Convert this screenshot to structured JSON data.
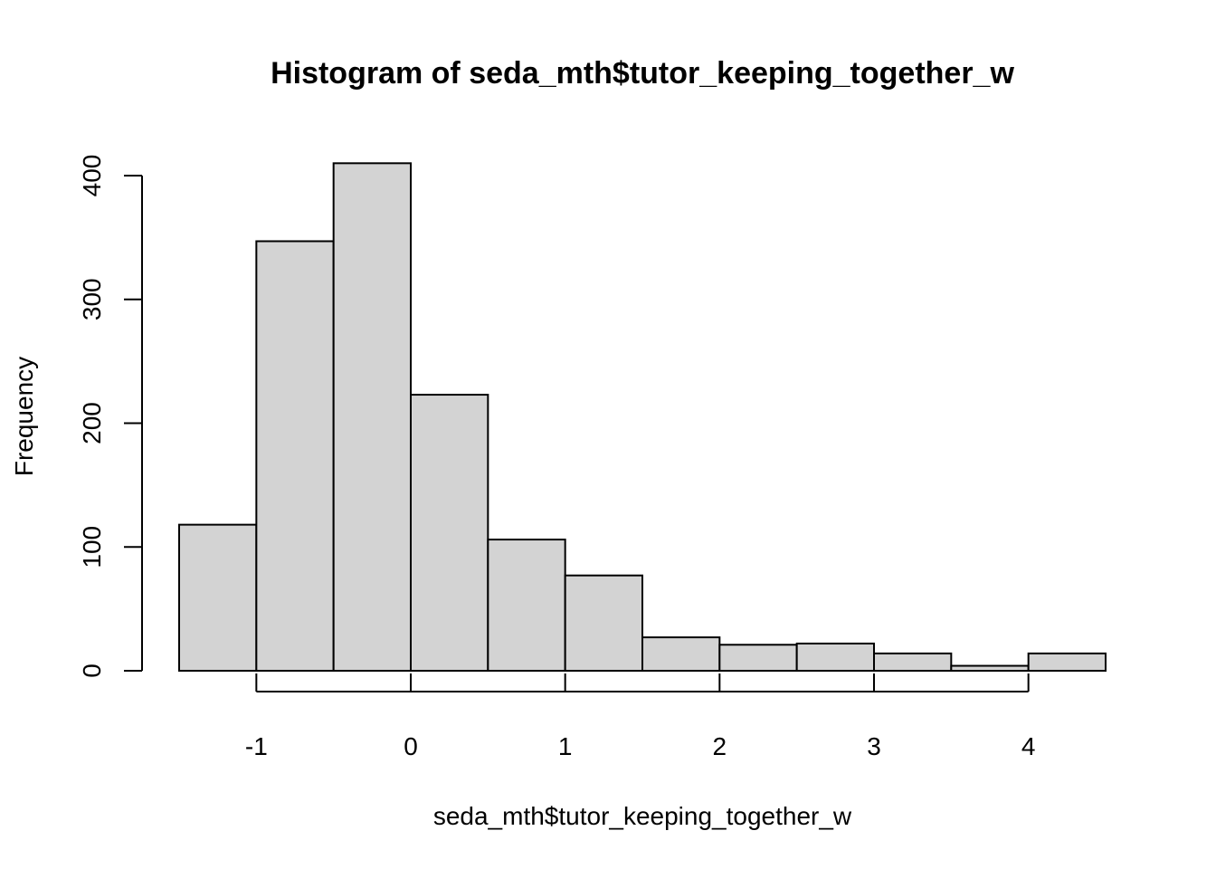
{
  "chart_data": {
    "type": "bar",
    "title": "Histogram of seda_mth$tutor_keeping_together_w",
    "xlabel": "seda_mth$tutor_keeping_together_w",
    "ylabel": "Frequency",
    "bins": [
      {
        "x0": -1.5,
        "x1": -1.0,
        "count": 118
      },
      {
        "x0": -1.0,
        "x1": -0.5,
        "count": 347
      },
      {
        "x0": -0.5,
        "x1": 0.0,
        "count": 410
      },
      {
        "x0": 0.0,
        "x1": 0.5,
        "count": 223
      },
      {
        "x0": 0.5,
        "x1": 1.0,
        "count": 106
      },
      {
        "x0": 1.0,
        "x1": 1.5,
        "count": 77
      },
      {
        "x0": 1.5,
        "x1": 2.0,
        "count": 27
      },
      {
        "x0": 2.0,
        "x1": 2.5,
        "count": 21
      },
      {
        "x0": 2.5,
        "x1": 3.0,
        "count": 22
      },
      {
        "x0": 3.0,
        "x1": 3.5,
        "count": 14
      },
      {
        "x0": 3.5,
        "x1": 4.0,
        "count": 4
      },
      {
        "x0": 4.0,
        "x1": 4.5,
        "count": 14
      }
    ],
    "xticks": [
      -1,
      0,
      1,
      2,
      3,
      4
    ],
    "xtick_labels": [
      "-1",
      "0",
      "1",
      "2",
      "3",
      "4"
    ],
    "yticks": [
      0,
      100,
      200,
      300,
      400
    ],
    "ytick_labels": [
      "0",
      "100",
      "200",
      "300",
      "400"
    ],
    "xlim": [
      -1.5,
      4.5
    ],
    "ylim": [
      0,
      410
    ],
    "grid": false,
    "colors": {
      "bar_fill": "#d3d3d3",
      "bar_stroke": "#000000"
    }
  }
}
